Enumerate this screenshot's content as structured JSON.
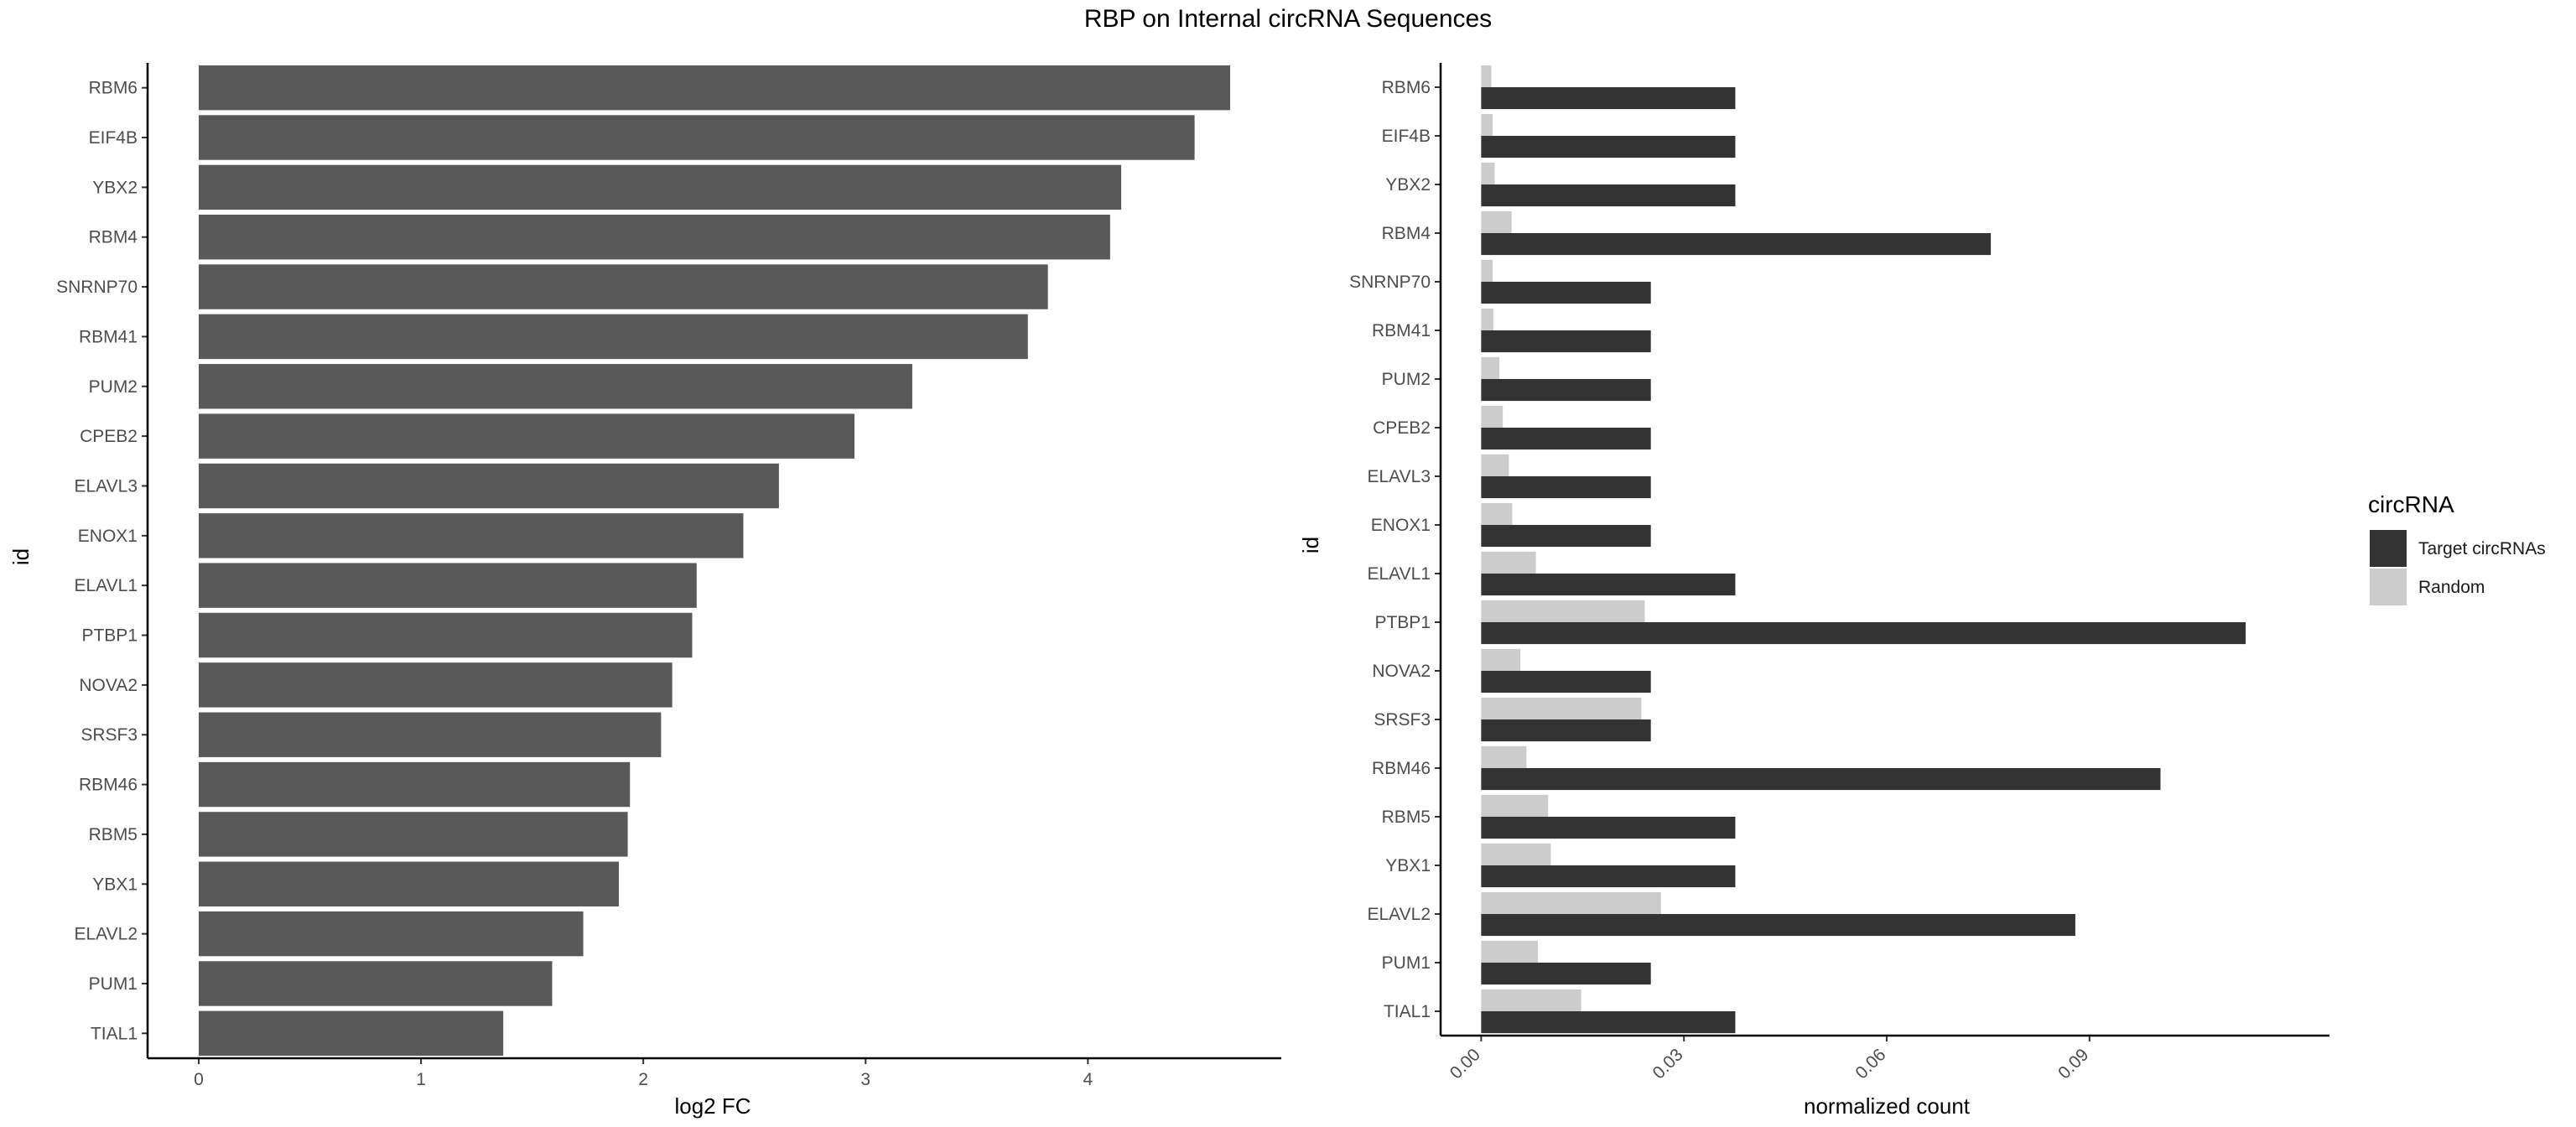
{
  "title": "RBP on Internal circRNA Sequences",
  "chart_data": [
    {
      "type": "bar",
      "orientation": "horizontal",
      "xlabel": "log2 FC",
      "ylabel": "id",
      "xlim": [
        -0.23,
        4.87
      ],
      "xticks": [
        0,
        1,
        2,
        3,
        4
      ],
      "grid": false,
      "categories": [
        "RBM6",
        "EIF4B",
        "YBX2",
        "RBM4",
        "SNRNP70",
        "RBM41",
        "PUM2",
        "CPEB2",
        "ELAVL3",
        "ENOX1",
        "ELAVL1",
        "PTBP1",
        "NOVA2",
        "SRSF3",
        "RBM46",
        "RBM5",
        "YBX1",
        "ELAVL2",
        "PUM1",
        "TIAL1"
      ],
      "values": [
        4.64,
        4.48,
        4.15,
        4.1,
        3.82,
        3.73,
        3.21,
        2.95,
        2.61,
        2.45,
        2.24,
        2.22,
        2.13,
        2.08,
        1.94,
        1.93,
        1.89,
        1.73,
        1.59,
        1.37
      ],
      "colors": {
        "bar": "#595959",
        "axis": "#333333"
      }
    },
    {
      "type": "bar",
      "orientation": "horizontal",
      "xlabel": "normalized count",
      "ylabel": "id",
      "xlim": [
        -0.006,
        0.1255
      ],
      "xticks": [
        "0.00",
        "0.03",
        "0.06",
        "0.09"
      ],
      "xtick_values": [
        0,
        0.03,
        0.06,
        0.09
      ],
      "grid": false,
      "legend_title": "circRNA",
      "legend_position": "right",
      "categories": [
        "RBM6",
        "EIF4B",
        "YBX2",
        "RBM4",
        "SNRNP70",
        "RBM41",
        "PUM2",
        "CPEB2",
        "ELAVL3",
        "ENOX1",
        "ELAVL1",
        "PTBP1",
        "NOVA2",
        "SRSF3",
        "RBM46",
        "RBM5",
        "YBX1",
        "ELAVL2",
        "PUM1",
        "TIAL1"
      ],
      "series": [
        {
          "name": "Target circRNAs",
          "color": "#333333",
          "values": [
            0.0376,
            0.0376,
            0.0376,
            0.0754,
            0.0251,
            0.0251,
            0.0251,
            0.0251,
            0.0251,
            0.0251,
            0.0376,
            0.1131,
            0.0251,
            0.0251,
            0.1005,
            0.0376,
            0.0376,
            0.0879,
            0.0251,
            0.0376
          ]
        },
        {
          "name": "Random",
          "color": "#cccccc",
          "values": [
            0.0015,
            0.0017,
            0.002,
            0.0045,
            0.0017,
            0.0018,
            0.0027,
            0.0032,
            0.0041,
            0.0046,
            0.0081,
            0.0242,
            0.0058,
            0.0237,
            0.0067,
            0.0099,
            0.0103,
            0.0266,
            0.0084,
            0.0148
          ]
        }
      ]
    }
  ]
}
